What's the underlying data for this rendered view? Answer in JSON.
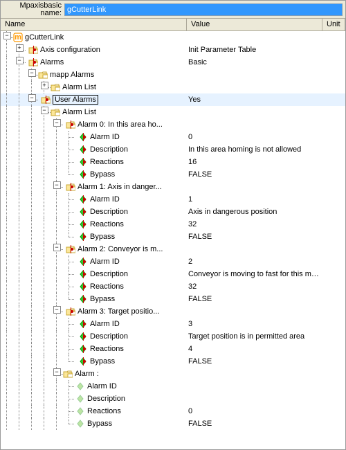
{
  "header": {
    "label": "Mpaxisbasic name:",
    "value": "gCutterLink"
  },
  "columns": {
    "name": "Name",
    "value": "Value",
    "unit": "Unit"
  },
  "glyphs": {
    "plus": "+",
    "minus": "−"
  },
  "rows": [
    {
      "indent": [
        "exp-"
      ],
      "icon": "m",
      "label": "gCutterLink",
      "value": ""
    },
    {
      "indent": [
        "line",
        "exp+",
        "mark"
      ],
      "icon": "folder",
      "label": "Axis configuration",
      "value": "Init Parameter Table"
    },
    {
      "indent": [
        "line",
        "exp-",
        "mark"
      ],
      "icon": "folder",
      "label": "Alarms",
      "value": "Basic"
    },
    {
      "indent": [
        "blank",
        "line",
        "exp-"
      ],
      "icon": "folder",
      "label": "mapp Alarms",
      "value": ""
    },
    {
      "indent": [
        "blank",
        "line",
        "line",
        "exp+"
      ],
      "icon": "folder",
      "label": "Alarm List",
      "value": ""
    },
    {
      "indent": [
        "blank",
        "line",
        "exp-",
        "mark"
      ],
      "icon": "folder",
      "label": "User Alarms",
      "value": "Yes",
      "selected": true
    },
    {
      "indent": [
        "blank",
        "blank",
        "line",
        "exp-"
      ],
      "icon": "folder",
      "label": "Alarm List",
      "value": ""
    },
    {
      "indent": [
        "blank",
        "blank",
        "blank",
        "line",
        "exp-",
        "mark"
      ],
      "icon": "folder",
      "label": "Alarm 0: In this area ho...",
      "value": ""
    },
    {
      "indent": [
        "blank",
        "blank",
        "blank",
        "line",
        "line",
        "leaf",
        "mark"
      ],
      "icon": "gem",
      "label": "Alarm ID",
      "value": "0"
    },
    {
      "indent": [
        "blank",
        "blank",
        "blank",
        "line",
        "line",
        "leaf",
        "mark"
      ],
      "icon": "gem",
      "label": "Description",
      "value": "In this area homing is not allowed"
    },
    {
      "indent": [
        "blank",
        "blank",
        "blank",
        "line",
        "line",
        "leaf",
        "mark"
      ],
      "icon": "gem",
      "label": "Reactions",
      "value": "16"
    },
    {
      "indent": [
        "blank",
        "blank",
        "blank",
        "line",
        "line",
        "leaf-last",
        "mark"
      ],
      "icon": "gem",
      "label": "Bypass",
      "value": "FALSE"
    },
    {
      "indent": [
        "blank",
        "blank",
        "blank",
        "line",
        "exp-",
        "mark"
      ],
      "icon": "folder",
      "label": "Alarm 1: Axis in danger...",
      "value": ""
    },
    {
      "indent": [
        "blank",
        "blank",
        "blank",
        "line",
        "line",
        "leaf",
        "mark"
      ],
      "icon": "gem",
      "label": "Alarm ID",
      "value": "1"
    },
    {
      "indent": [
        "blank",
        "blank",
        "blank",
        "line",
        "line",
        "leaf",
        "mark"
      ],
      "icon": "gem",
      "label": "Description",
      "value": "Axis in dangerous position"
    },
    {
      "indent": [
        "blank",
        "blank",
        "blank",
        "line",
        "line",
        "leaf",
        "mark"
      ],
      "icon": "gem",
      "label": "Reactions",
      "value": "32"
    },
    {
      "indent": [
        "blank",
        "blank",
        "blank",
        "line",
        "line",
        "leaf-last",
        "mark"
      ],
      "icon": "gem",
      "label": "Bypass",
      "value": "FALSE"
    },
    {
      "indent": [
        "blank",
        "blank",
        "blank",
        "line",
        "exp-",
        "mark"
      ],
      "icon": "folder",
      "label": "Alarm 2: Conveyor is m...",
      "value": ""
    },
    {
      "indent": [
        "blank",
        "blank",
        "blank",
        "line",
        "line",
        "leaf",
        "mark"
      ],
      "icon": "gem",
      "label": "Alarm ID",
      "value": "2"
    },
    {
      "indent": [
        "blank",
        "blank",
        "blank",
        "line",
        "line",
        "leaf",
        "mark"
      ],
      "icon": "gem",
      "label": "Description",
      "value": "Conveyor is moving to fast for this mode"
    },
    {
      "indent": [
        "blank",
        "blank",
        "blank",
        "line",
        "line",
        "leaf",
        "mark"
      ],
      "icon": "gem",
      "label": "Reactions",
      "value": "32"
    },
    {
      "indent": [
        "blank",
        "blank",
        "blank",
        "line",
        "line",
        "leaf-last",
        "mark"
      ],
      "icon": "gem",
      "label": "Bypass",
      "value": "FALSE"
    },
    {
      "indent": [
        "blank",
        "blank",
        "blank",
        "line",
        "exp-",
        "mark"
      ],
      "icon": "folder",
      "label": "Alarm 3: Target positio...",
      "value": ""
    },
    {
      "indent": [
        "blank",
        "blank",
        "blank",
        "line",
        "line",
        "leaf",
        "mark"
      ],
      "icon": "gem",
      "label": "Alarm ID",
      "value": "3"
    },
    {
      "indent": [
        "blank",
        "blank",
        "blank",
        "line",
        "line",
        "leaf",
        "mark"
      ],
      "icon": "gem",
      "label": "Description",
      "value": "Target position is in permitted area"
    },
    {
      "indent": [
        "blank",
        "blank",
        "blank",
        "line",
        "line",
        "leaf",
        "mark"
      ],
      "icon": "gem",
      "label": "Reactions",
      "value": "4"
    },
    {
      "indent": [
        "blank",
        "blank",
        "blank",
        "line",
        "line",
        "leaf-last",
        "mark"
      ],
      "icon": "gem",
      "label": "Bypass",
      "value": "FALSE"
    },
    {
      "indent": [
        "blank",
        "blank",
        "blank",
        "line",
        "exp-"
      ],
      "icon": "folder",
      "label": "Alarm :",
      "value": ""
    },
    {
      "indent": [
        "blank",
        "blank",
        "blank",
        "blank",
        "line",
        "leaf"
      ],
      "icon": "gem-dim",
      "label": "Alarm ID",
      "value": ""
    },
    {
      "indent": [
        "blank",
        "blank",
        "blank",
        "blank",
        "line",
        "leaf"
      ],
      "icon": "gem-dim",
      "label": "Description",
      "value": ""
    },
    {
      "indent": [
        "blank",
        "blank",
        "blank",
        "blank",
        "line",
        "leaf"
      ],
      "icon": "gem-dim",
      "label": "Reactions",
      "value": "0"
    },
    {
      "indent": [
        "blank",
        "blank",
        "blank",
        "blank",
        "line",
        "leaf-last"
      ],
      "icon": "gem-dim",
      "label": "Bypass",
      "value": "FALSE"
    }
  ]
}
